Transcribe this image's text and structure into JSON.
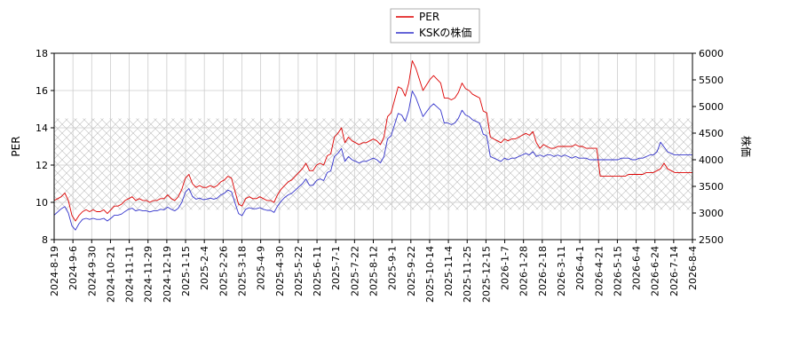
{
  "chart_data": {
    "type": "line",
    "ylabel": "PER",
    "y2label": "株価",
    "ylim": [
      8,
      18
    ],
    "y2lim": [
      2500,
      6000
    ],
    "yticks": [
      "8",
      "10",
      "12",
      "14",
      "16",
      "18"
    ],
    "y2ticks": [
      "2500",
      "3000",
      "3500",
      "4000",
      "4500",
      "5000",
      "5500",
      "6000"
    ],
    "xticks": [
      "2024-8-19",
      "2024-9-6",
      "2024-9-30",
      "2024-10-21",
      "2024-11-11",
      "2024-11-29",
      "2024-12-19",
      "2025-1-15",
      "2025-2-4",
      "2025-2-26",
      "2025-3-18",
      "2025-4-9",
      "2025-4-30",
      "2025-5-22",
      "2025-6-11",
      "2025-7-1",
      "2025-7-22",
      "2025-8-12",
      "2025-9-1",
      "2025-9-22",
      "2025-10-14",
      "2025-11-4",
      "2025-11-25",
      "2025-12-15",
      "2026-1-7",
      "2026-1-28",
      "2026-2-18",
      "2026-3-11",
      "2026-4-1",
      "2026-4-21",
      "2026-5-15",
      "2026-6-4",
      "2026-6-24",
      "2026-7-14",
      "2026-8-4"
    ],
    "band": {
      "ymin": 9.6,
      "ymax": 14.5
    },
    "legend": {
      "position": "top-center"
    },
    "grid": true,
    "series": [
      {
        "name": "PER",
        "color": "#dd0000",
        "axis": "left",
        "x": [
          0,
          1,
          2,
          3,
          4,
          5,
          6,
          7,
          8,
          9,
          10,
          11,
          12,
          13,
          14,
          15,
          16,
          17,
          18,
          19,
          20,
          21,
          22,
          23,
          24,
          25,
          26,
          27,
          28,
          29,
          30,
          31,
          32,
          33,
          34,
          35,
          36,
          37,
          38,
          39,
          40,
          41,
          42,
          43,
          44,
          45,
          46,
          47,
          48,
          49,
          50,
          51,
          52,
          53,
          54,
          55,
          56,
          57,
          58,
          59,
          60,
          61,
          62,
          63,
          64,
          65,
          66,
          67,
          68,
          69,
          70,
          71,
          72,
          73,
          74,
          75,
          76,
          77,
          78,
          79,
          80,
          81,
          82,
          83,
          84,
          85,
          86,
          87,
          88,
          89,
          90,
          91,
          92,
          93,
          94,
          95,
          96,
          97,
          98,
          99,
          100,
          101,
          102,
          103,
          104,
          105,
          106,
          107,
          108,
          109,
          110,
          111,
          112,
          113,
          114,
          115,
          116,
          117,
          118,
          119,
          120,
          121,
          122,
          123,
          124,
          125,
          126,
          127,
          128,
          129,
          130,
          131,
          132,
          133,
          134,
          135,
          136,
          137,
          138,
          139,
          140,
          141,
          142,
          143,
          144,
          145,
          146,
          147,
          148,
          149,
          150,
          151,
          152,
          153,
          154,
          155,
          156,
          157,
          158,
          159,
          160,
          161,
          162,
          163,
          164,
          165,
          166,
          167,
          168,
          169,
          170,
          171,
          172,
          173,
          174,
          175,
          176,
          177,
          178,
          179,
          180
        ],
        "values": [
          10.1,
          10.2,
          10.3,
          10.5,
          10.1,
          9.3,
          9.0,
          9.3,
          9.5,
          9.6,
          9.5,
          9.6,
          9.5,
          9.5,
          9.6,
          9.4,
          9.6,
          9.8,
          9.8,
          9.9,
          10.1,
          10.2,
          10.3,
          10.1,
          10.2,
          10.1,
          10.1,
          10.0,
          10.1,
          10.1,
          10.2,
          10.2,
          10.4,
          10.2,
          10.1,
          10.3,
          10.7,
          11.3,
          11.5,
          11.0,
          10.8,
          10.9,
          10.8,
          10.8,
          10.9,
          10.8,
          10.9,
          11.1,
          11.2,
          11.4,
          11.3,
          10.6,
          9.9,
          9.8,
          10.2,
          10.3,
          10.2,
          10.2,
          10.3,
          10.2,
          10.1,
          10.1,
          10.0,
          10.4,
          10.7,
          10.9,
          11.1,
          11.2,
          11.4,
          11.6,
          11.8,
          12.1,
          11.7,
          11.7,
          12.0,
          12.1,
          12.0,
          12.5,
          12.6,
          13.5,
          13.7,
          14.0,
          13.2,
          13.5,
          13.3,
          13.2,
          13.1,
          13.2,
          13.2,
          13.3,
          13.4,
          13.3,
          13.1,
          13.5,
          14.6,
          14.8,
          15.5,
          16.2,
          16.1,
          15.7,
          16.4,
          17.6,
          17.2,
          16.6,
          16.0,
          16.3,
          16.6,
          16.8,
          16.6,
          16.4,
          15.6,
          15.6,
          15.5,
          15.6,
          15.9,
          16.4,
          16.1,
          16.0,
          15.8,
          15.7,
          15.6,
          14.9,
          14.8,
          13.5,
          13.4,
          13.3,
          13.2,
          13.4,
          13.3,
          13.4,
          13.4,
          13.5,
          13.6,
          13.7,
          13.6,
          13.8,
          13.2,
          12.9,
          13.1,
          13.0,
          12.9,
          12.9,
          13.0,
          13.0,
          13.0,
          13.0,
          13.0,
          13.1,
          13.0,
          13.0,
          12.9,
          12.9,
          12.9,
          12.9,
          11.4,
          11.4,
          11.4,
          11.4,
          11.4,
          11.4,
          11.4,
          11.4,
          11.5,
          11.5,
          11.5,
          11.5,
          11.5,
          11.6,
          11.6,
          11.6,
          11.7,
          11.8,
          12.1,
          11.8,
          11.7,
          11.6,
          11.6,
          11.6,
          11.6,
          11.6,
          11.6
        ]
      },
      {
        "name": "KSKの株価",
        "color": "#3333cc",
        "axis": "right",
        "x": [
          0,
          1,
          2,
          3,
          4,
          5,
          6,
          7,
          8,
          9,
          10,
          11,
          12,
          13,
          14,
          15,
          16,
          17,
          18,
          19,
          20,
          21,
          22,
          23,
          24,
          25,
          26,
          27,
          28,
          29,
          30,
          31,
          32,
          33,
          34,
          35,
          36,
          37,
          38,
          39,
          40,
          41,
          42,
          43,
          44,
          45,
          46,
          47,
          48,
          49,
          50,
          51,
          52,
          53,
          54,
          55,
          56,
          57,
          58,
          59,
          60,
          61,
          62,
          63,
          64,
          65,
          66,
          67,
          68,
          69,
          70,
          71,
          72,
          73,
          74,
          75,
          76,
          77,
          78,
          79,
          80,
          81,
          82,
          83,
          84,
          85,
          86,
          87,
          88,
          89,
          90,
          91,
          92,
          93,
          94,
          95,
          96,
          97,
          98,
          99,
          100,
          101,
          102,
          103,
          104,
          105,
          106,
          107,
          108,
          109,
          110,
          111,
          112,
          113,
          114,
          115,
          116,
          117,
          118,
          119,
          120,
          121,
          122,
          123,
          124,
          125,
          126,
          127,
          128,
          129,
          130,
          131,
          132,
          133,
          134,
          135,
          136,
          137,
          138,
          139,
          140,
          141,
          142,
          143,
          144,
          145,
          146,
          147,
          148,
          149,
          150,
          151,
          152,
          153,
          154,
          155,
          156,
          157,
          158,
          159,
          160,
          161,
          162,
          163,
          164,
          165,
          166,
          167,
          168,
          169,
          170,
          171,
          172,
          173,
          174,
          175,
          176,
          177,
          178,
          179,
          180
        ],
        "values": [
          2960,
          3020,
          3080,
          3120,
          3000,
          2760,
          2680,
          2800,
          2880,
          2900,
          2880,
          2900,
          2880,
          2880,
          2900,
          2850,
          2900,
          2960,
          2960,
          2980,
          3030,
          3070,
          3090,
          3040,
          3060,
          3040,
          3040,
          3020,
          3040,
          3040,
          3070,
          3060,
          3110,
          3070,
          3040,
          3090,
          3200,
          3390,
          3460,
          3310,
          3260,
          3280,
          3250,
          3260,
          3280,
          3260,
          3280,
          3340,
          3370,
          3430,
          3400,
          3190,
          2990,
          2950,
          3070,
          3100,
          3080,
          3080,
          3100,
          3070,
          3050,
          3050,
          3010,
          3130,
          3220,
          3290,
          3340,
          3370,
          3430,
          3490,
          3550,
          3640,
          3520,
          3520,
          3610,
          3640,
          3610,
          3760,
          3790,
          4060,
          4120,
          4210,
          3970,
          4060,
          4000,
          3970,
          3940,
          3970,
          3970,
          4000,
          4030,
          4000,
          3940,
          4060,
          4390,
          4450,
          4660,
          4870,
          4840,
          4720,
          4930,
          5290,
          5170,
          4990,
          4810,
          4900,
          4990,
          5050,
          4990,
          4930,
          4690,
          4690,
          4660,
          4690,
          4780,
          4930,
          4840,
          4810,
          4750,
          4720,
          4690,
          4480,
          4450,
          4060,
          4030,
          4000,
          3970,
          4030,
          4000,
          4030,
          4030,
          4060,
          4090,
          4120,
          4090,
          4150,
          4060,
          4090,
          4060,
          4090,
          4090,
          4060,
          4090,
          4060,
          4090,
          4060,
          4030,
          4060,
          4030,
          4030,
          4030,
          4000,
          4000,
          4000,
          4000,
          4000,
          4000,
          4000,
          4000,
          4000,
          4030,
          4030,
          4030,
          4000,
          4000,
          4030,
          4030,
          4060,
          4090,
          4090,
          4150,
          4330,
          4240,
          4150,
          4120,
          4090,
          4090,
          4090,
          4090,
          4090,
          4090
        ]
      }
    ]
  }
}
